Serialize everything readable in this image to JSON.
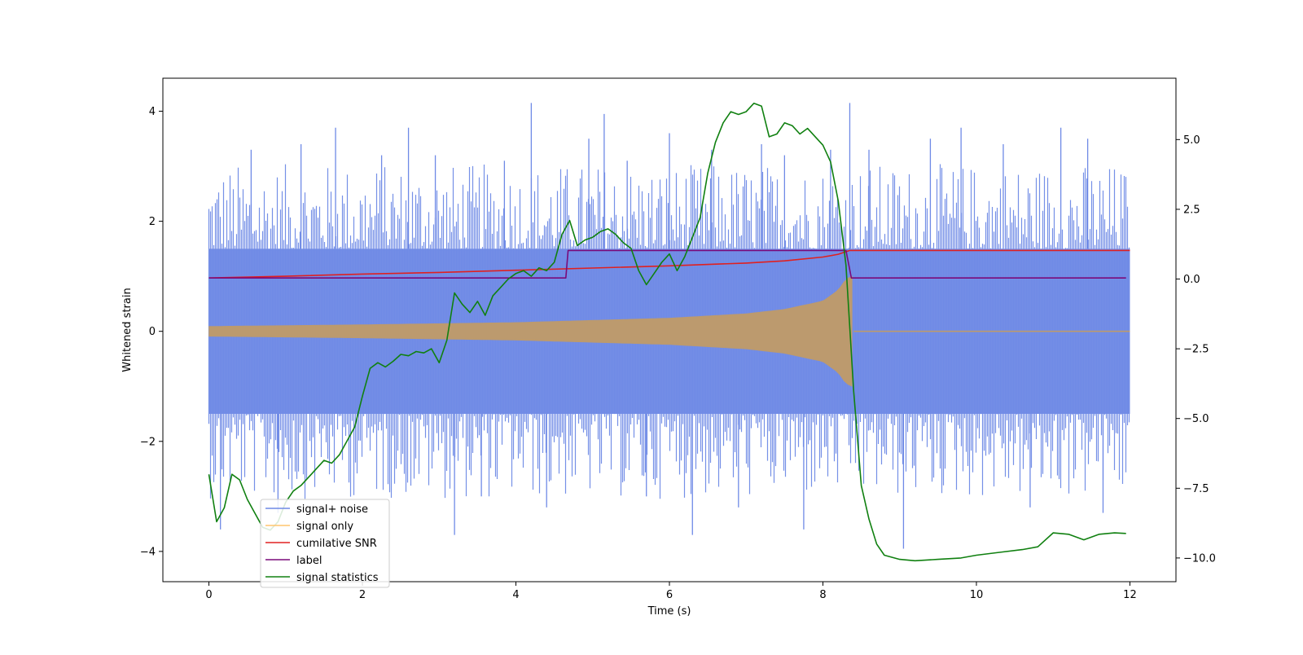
{
  "chart_data": {
    "type": "line",
    "title": "",
    "xlabel": "Time (s)",
    "ylabel": "Whitened strain",
    "y2label": "",
    "xlim": [
      -0.6,
      12.6
    ],
    "ylim": [
      -4.55,
      4.6
    ],
    "y2lim": [
      -10.85,
      7.2
    ],
    "xticks": [
      0,
      2,
      4,
      6,
      8,
      10,
      12
    ],
    "xtick_labels": [
      "0",
      "2",
      "4",
      "6",
      "8",
      "10",
      "12"
    ],
    "yticks": [
      4,
      2,
      0,
      -2,
      -4
    ],
    "ytick_labels": [
      "4",
      "2",
      "0",
      "−2",
      "−4"
    ],
    "y2ticks": [
      5.0,
      2.5,
      0.0,
      -2.5,
      -5.0,
      -7.5,
      -10.0
    ],
    "y2tick_labels": [
      "5.0",
      "2.5",
      "0.0",
      "−2.5",
      "−5.0",
      "−7.5",
      "−10.0"
    ],
    "legend_position": "lower-left",
    "legend": [
      "signal+ noise",
      "signal only",
      "cumilative SNR",
      "label",
      "signal statistics"
    ],
    "series": [
      {
        "name": "signal+ noise",
        "axis": "left",
        "color": "#6f8ae6",
        "summary": {
          "t_start": 0,
          "t_end": 12,
          "band_low": -1.5,
          "band_high": 1.5,
          "spike_max": 4.15,
          "spike_min": -3.95
        },
        "spikes": [
          {
            "t": 0.15,
            "v": -3.6
          },
          {
            "t": 0.55,
            "v": 3.3
          },
          {
            "t": 0.9,
            "v": -3.3
          },
          {
            "t": 1.2,
            "v": 3.4
          },
          {
            "t": 1.65,
            "v": 3.7
          },
          {
            "t": 2.25,
            "v": 3.2
          },
          {
            "t": 2.6,
            "v": 3.7
          },
          {
            "t": 2.95,
            "v": 3.2
          },
          {
            "t": 3.2,
            "v": -3.7
          },
          {
            "t": 3.55,
            "v": -3.0
          },
          {
            "t": 3.85,
            "v": 3.1
          },
          {
            "t": 4.2,
            "v": 4.15
          },
          {
            "t": 4.4,
            "v": -3.2
          },
          {
            "t": 4.95,
            "v": 3.5
          },
          {
            "t": 5.15,
            "v": 3.95
          },
          {
            "t": 5.45,
            "v": 3.1
          },
          {
            "t": 5.7,
            "v": -3.0
          },
          {
            "t": 6.0,
            "v": 3.6
          },
          {
            "t": 6.3,
            "v": -3.7
          },
          {
            "t": 6.55,
            "v": 3.3
          },
          {
            "t": 6.9,
            "v": -3.2
          },
          {
            "t": 7.2,
            "v": 3.4
          },
          {
            "t": 7.5,
            "v": 3.2
          },
          {
            "t": 7.75,
            "v": -3.6
          },
          {
            "t": 8.1,
            "v": 3.3
          },
          {
            "t": 8.35,
            "v": 4.15
          },
          {
            "t": 8.6,
            "v": 3.3
          },
          {
            "t": 9.05,
            "v": -3.95
          },
          {
            "t": 9.4,
            "v": 3.5
          },
          {
            "t": 9.8,
            "v": 3.7
          },
          {
            "t": 10.35,
            "v": 3.4
          },
          {
            "t": 10.7,
            "v": -3.2
          },
          {
            "t": 11.1,
            "v": 3.7
          },
          {
            "t": 11.45,
            "v": 3.5
          },
          {
            "t": 11.65,
            "v": -3.3
          }
        ]
      },
      {
        "name": "signal only",
        "axis": "left",
        "color": "#bc9a6e",
        "envelope": {
          "t": [
            0,
            2,
            4,
            6,
            7,
            7.5,
            8,
            8.2,
            8.3,
            8.38
          ],
          "amp": [
            0.09,
            0.12,
            0.16,
            0.24,
            0.32,
            0.4,
            0.55,
            0.75,
            0.95,
            1.0
          ]
        },
        "after_merger": {
          "t_start": 8.4,
          "t_end": 12,
          "value": 0.0
        }
      },
      {
        "name": "cumilative SNR",
        "axis": "left",
        "color": "#e02020",
        "x": [
          0,
          1,
          2,
          3,
          4,
          5,
          6,
          7,
          7.5,
          8,
          8.2,
          8.35,
          9,
          10,
          11,
          12
        ],
        "y": [
          0.97,
          1.0,
          1.04,
          1.07,
          1.11,
          1.15,
          1.19,
          1.24,
          1.28,
          1.35,
          1.4,
          1.47,
          1.47,
          1.47,
          1.47,
          1.47
        ]
      },
      {
        "name": "label",
        "axis": "left",
        "color": "#7a0a7a",
        "x": [
          0,
          4.65,
          4.68,
          8.3,
          8.37,
          11.95
        ],
        "y": [
          0.97,
          0.97,
          1.47,
          1.47,
          0.97,
          0.97
        ]
      },
      {
        "name": "signal statistics",
        "axis": "right",
        "color": "#108010",
        "x": [
          0,
          0.1,
          0.2,
          0.3,
          0.4,
          0.5,
          0.6,
          0.7,
          0.8,
          0.9,
          1.0,
          1.1,
          1.2,
          1.3,
          1.4,
          1.5,
          1.6,
          1.7,
          1.8,
          1.9,
          2.0,
          2.1,
          2.2,
          2.3,
          2.4,
          2.5,
          2.6,
          2.7,
          2.8,
          2.9,
          3.0,
          3.1,
          3.2,
          3.3,
          3.4,
          3.5,
          3.6,
          3.7,
          3.8,
          3.9,
          4.0,
          4.1,
          4.2,
          4.3,
          4.4,
          4.5,
          4.6,
          4.7,
          4.8,
          4.9,
          5.0,
          5.1,
          5.2,
          5.3,
          5.4,
          5.5,
          5.6,
          5.7,
          5.8,
          5.9,
          6.0,
          6.1,
          6.2,
          6.3,
          6.4,
          6.5,
          6.6,
          6.7,
          6.8,
          6.9,
          7.0,
          7.1,
          7.2,
          7.3,
          7.4,
          7.5,
          7.6,
          7.7,
          7.8,
          7.9,
          8.0,
          8.1,
          8.2,
          8.3,
          8.4,
          8.5,
          8.6,
          8.7,
          8.8,
          9.0,
          9.2,
          9.5,
          9.8,
          10.0,
          10.3,
          10.6,
          10.8,
          11.0,
          11.2,
          11.4,
          11.6,
          11.8,
          11.95
        ],
        "y": [
          -7.0,
          -8.7,
          -8.2,
          -7.0,
          -7.2,
          -7.9,
          -8.4,
          -8.9,
          -9.0,
          -8.7,
          -8.0,
          -7.6,
          -7.4,
          -7.1,
          -6.8,
          -6.5,
          -6.6,
          -6.3,
          -5.8,
          -5.3,
          -4.2,
          -3.2,
          -3.0,
          -3.15,
          -2.95,
          -2.7,
          -2.75,
          -2.6,
          -2.65,
          -2.5,
          -3.0,
          -2.2,
          -0.5,
          -0.9,
          -1.2,
          -0.8,
          -1.3,
          -0.6,
          -0.3,
          0.0,
          0.2,
          0.3,
          0.1,
          0.4,
          0.3,
          0.6,
          1.6,
          2.1,
          1.2,
          1.4,
          1.5,
          1.7,
          1.8,
          1.6,
          1.3,
          1.1,
          0.3,
          -0.2,
          0.2,
          0.6,
          0.9,
          0.3,
          0.8,
          1.5,
          2.2,
          3.8,
          4.9,
          5.6,
          6.0,
          5.9,
          6.0,
          6.3,
          6.2,
          5.1,
          5.2,
          5.6,
          5.5,
          5.2,
          5.4,
          5.1,
          4.8,
          4.2,
          2.8,
          0.5,
          -4.0,
          -7.4,
          -8.6,
          -9.5,
          -9.9,
          -10.05,
          -10.1,
          -10.05,
          -10.0,
          -9.9,
          -9.8,
          -9.7,
          -9.6,
          -9.1,
          -9.15,
          -9.35,
          -9.15,
          -9.1,
          -9.12
        ]
      }
    ]
  }
}
